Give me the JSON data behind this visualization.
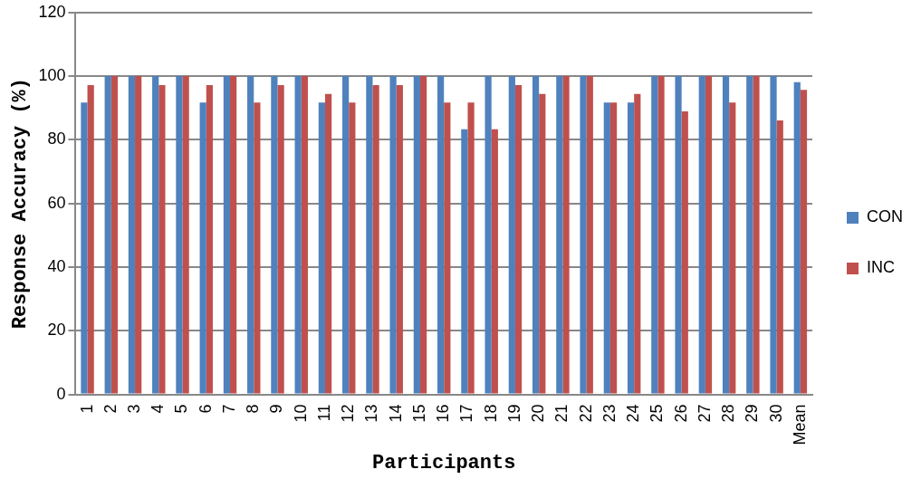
{
  "chart_data": {
    "type": "bar",
    "xlabel": "Participants",
    "ylabel": "Response Accuracy (%)",
    "categories": [
      "1",
      "2",
      "3",
      "4",
      "5",
      "6",
      "7",
      "8",
      "9",
      "10",
      "11",
      "12",
      "13",
      "14",
      "15",
      "16",
      "17",
      "18",
      "19",
      "20",
      "21",
      "22",
      "23",
      "24",
      "25",
      "26",
      "27",
      "28",
      "29",
      "30",
      "Mean"
    ],
    "series": [
      {
        "name": "CON",
        "color": "#4f81bd",
        "values": [
          91.7,
          100,
          100,
          100,
          100,
          91.7,
          100,
          100,
          100,
          100,
          91.7,
          100,
          100,
          100,
          100,
          100,
          83.3,
          100,
          100,
          100,
          100,
          100,
          91.7,
          91.7,
          100,
          100,
          100,
          100,
          100,
          100,
          98.1
        ]
      },
      {
        "name": "INC",
        "color": "#c0504d",
        "values": [
          97.2,
          100,
          100,
          97.2,
          100,
          97.2,
          100,
          91.7,
          97.2,
          100,
          94.4,
          91.7,
          97.2,
          97.2,
          100,
          91.7,
          91.7,
          83.3,
          97.2,
          94.4,
          100,
          100,
          91.7,
          94.4,
          100,
          88.9,
          100,
          91.7,
          100,
          86.1,
          95.7
        ]
      }
    ],
    "ylim": [
      0,
      120
    ],
    "yticks": [
      0,
      20,
      40,
      60,
      80,
      100,
      120
    ],
    "grid": "y",
    "legend": "right"
  }
}
